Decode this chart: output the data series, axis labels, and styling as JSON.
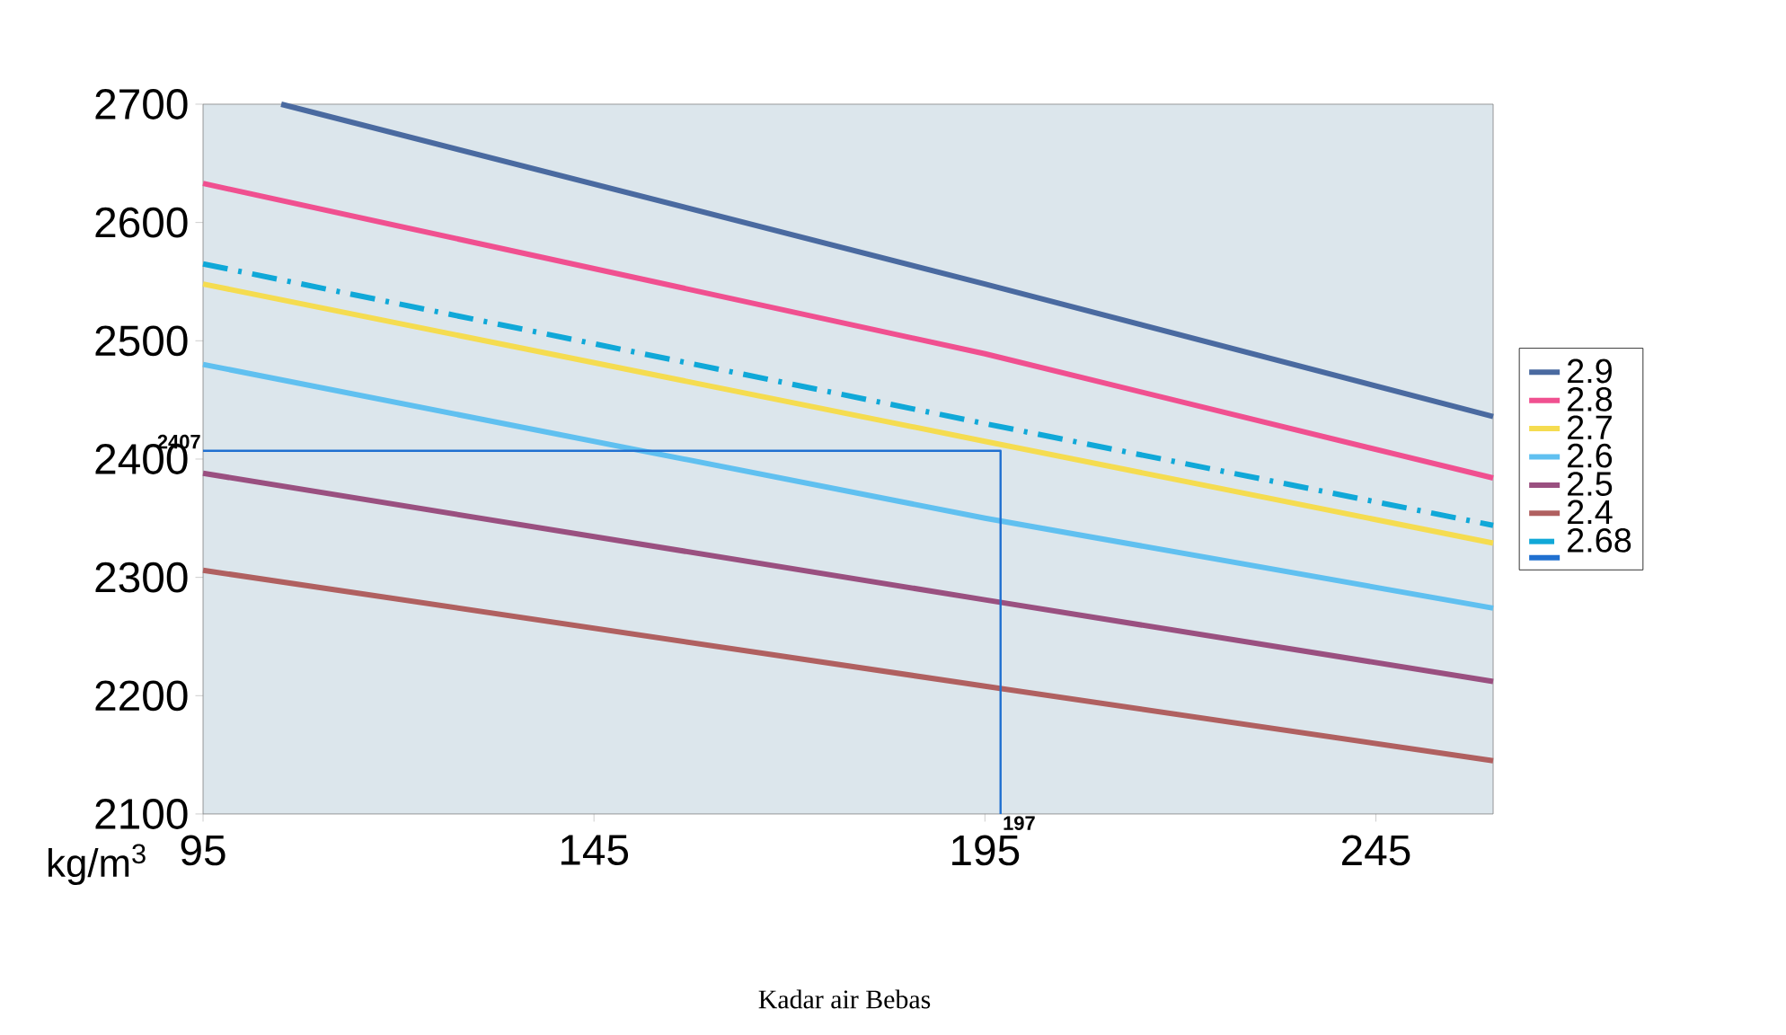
{
  "chart_data": {
    "type": "line",
    "xlabel": "Kadar air Bebas",
    "ylabel": "kg/m$^{3}$",
    "xlim": [
      95,
      260
    ],
    "xticks": [
      95,
      145,
      195,
      245
    ],
    "ylim": [
      2100,
      2700
    ],
    "yticks": [
      2100,
      2200,
      2300,
      2400,
      2500,
      2600,
      2700
    ],
    "legend": "right",
    "grid": false,
    "marker": "none",
    "series": [
      {
        "name": "2.9",
        "color": "#4a6aa0",
        "x": [
          105,
          195,
          260
        ],
        "values": [
          2700,
          2548,
          2436
        ]
      },
      {
        "name": "2.8",
        "color": "#f05090",
        "x": [
          95,
          195,
          260
        ],
        "values": [
          2633,
          2489,
          2384
        ]
      },
      {
        "name": "2.7",
        "color": "#f5dc50",
        "x": [
          95,
          195,
          260
        ],
        "values": [
          2548,
          2415,
          2329
        ]
      },
      {
        "name": "2.6",
        "color": "#60c0f0",
        "x": [
          95,
          195,
          260
        ],
        "values": [
          2480,
          2350,
          2274
        ]
      },
      {
        "name": "2.5",
        "color": "#9a5080",
        "x": [
          95,
          195,
          260
        ],
        "values": [
          2388,
          2281,
          2212
        ]
      },
      {
        "name": "2.4",
        "color": "#b06060",
        "x": [
          95,
          195,
          260
        ],
        "values": [
          2306,
          2208,
          2145
        ]
      },
      {
        "name": "2.68",
        "color": "#10a8d8",
        "line_style": "dashdot",
        "x": [
          95,
          195,
          260
        ],
        "values": [
          2565,
          2430,
          2344
        ]
      },
      {
        "color": "#2070d0",
        "x": [
          95,
          197,
          197
        ],
        "values": [
          2407,
          2407,
          2100
        ]
      }
    ],
    "annotations": [
      {
        "text": "2407",
        "x": 95,
        "y": 2407
      },
      {
        "text": "197",
        "x": 197,
        "y": 2100
      }
    ]
  }
}
